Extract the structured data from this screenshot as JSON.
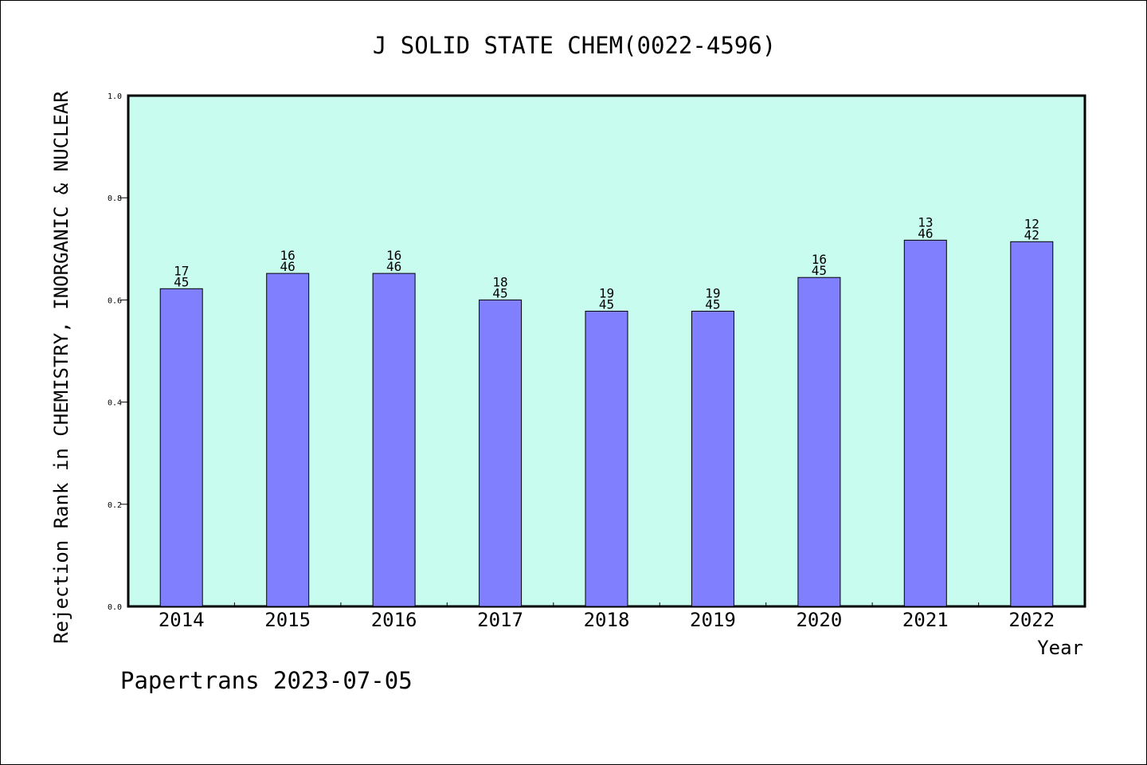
{
  "chart_data": {
    "type": "bar",
    "title": "J SOLID STATE CHEM(0022-4596)",
    "xlabel": "Year",
    "ylabel": "Rejection Rank in CHEMISTRY, INORGANIC & NUCLEAR",
    "categories": [
      "2014",
      "2015",
      "2016",
      "2017",
      "2018",
      "2019",
      "2020",
      "2021",
      "2022"
    ],
    "values": [
      0.622,
      0.652,
      0.652,
      0.6,
      0.578,
      0.578,
      0.644,
      0.717,
      0.714
    ],
    "bar_labels": [
      [
        "17",
        "45"
      ],
      [
        "16",
        "46"
      ],
      [
        "16",
        "46"
      ],
      [
        "18",
        "45"
      ],
      [
        "19",
        "45"
      ],
      [
        "19",
        "45"
      ],
      [
        "16",
        "45"
      ],
      [
        "13",
        "46"
      ],
      [
        "12",
        "42"
      ]
    ],
    "ylim": [
      0,
      1.0
    ],
    "yticks": [
      "0.0",
      "0.2",
      "0.4",
      "0.6",
      "0.8",
      "1.0"
    ],
    "grid": false,
    "colors": {
      "plot_background": "#c8fcee",
      "bar_fill": "#8080ff",
      "bar_stroke": "#000000"
    }
  },
  "footer": "Papertrans 2023-07-05"
}
